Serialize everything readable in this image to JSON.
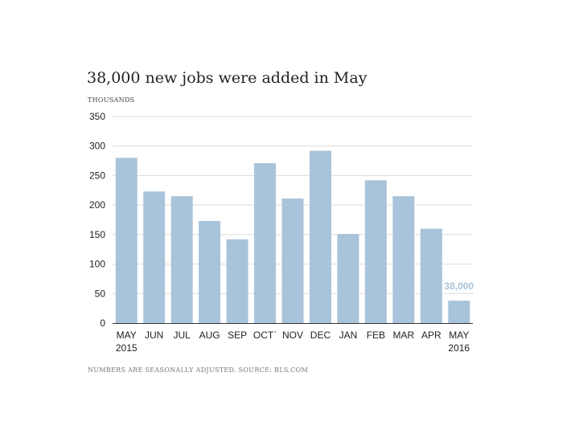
{
  "chart_data": {
    "type": "bar",
    "title": "38,000 new jobs were added in May",
    "ylabel": "THOUSANDS",
    "source": "NUMBERS ARE SEASONALLY ADJUSTED. SOURCE: BLS.COM",
    "categories": [
      "MAY",
      "JUN",
      "JUL",
      "AUG",
      "SEP",
      "OCT`",
      "NOV",
      "DEC",
      "JAN",
      "FEB",
      "MAR",
      "APR",
      "MAY"
    ],
    "year_labels": [
      "2015",
      "",
      "",
      "",
      "",
      "",
      "",
      "",
      "",
      "",
      "",
      "",
      "2016"
    ],
    "values": [
      280,
      223,
      215,
      173,
      142,
      271,
      211,
      292,
      151,
      242,
      215,
      160,
      38
    ],
    "yticks": [
      0,
      50,
      100,
      150,
      200,
      250,
      300,
      350
    ],
    "ylim": [
      0,
      350
    ],
    "grid": true,
    "annotation": {
      "index": 12,
      "text": "38,000"
    },
    "colors": {
      "bar": "#a9c3da",
      "annotation": "#a9c3da",
      "grid": "#dddddd",
      "axis": "#333333"
    }
  }
}
